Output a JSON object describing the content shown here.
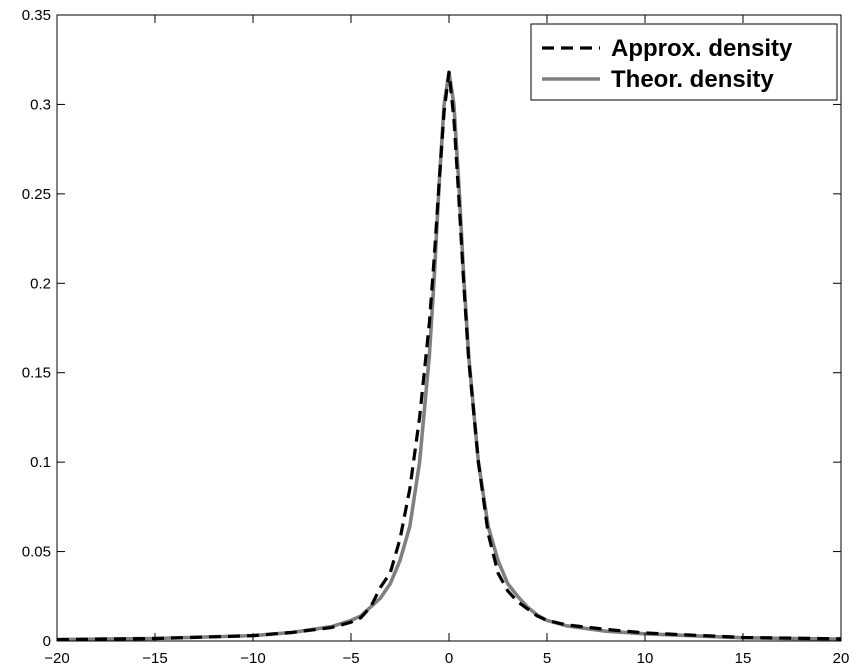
{
  "chart_data": {
    "type": "line",
    "xlim": [
      -20,
      20
    ],
    "ylim": [
      0,
      0.35
    ],
    "xticks": [
      "−20",
      "−15",
      "−10",
      "−5",
      "0",
      "5",
      "10",
      "15",
      "20"
    ],
    "xtick_values": [
      -20,
      -15,
      -10,
      -5,
      0,
      5,
      10,
      15,
      20
    ],
    "yticks": [
      "0",
      "0.05",
      "0.1",
      "0.15",
      "0.2",
      "0.25",
      "0.3",
      "0.35"
    ],
    "ytick_values": [
      0,
      0.05,
      0.1,
      0.15,
      0.2,
      0.25,
      0.3,
      0.35
    ],
    "grid": false,
    "legend_position": "top-right",
    "series": [
      {
        "name": "Approx. density",
        "style": "dashed",
        "color": "#000000",
        "x": [
          -20,
          -15,
          -10,
          -8,
          -6,
          -5,
          -4.5,
          -4,
          -3.5,
          -3,
          -2.5,
          -2,
          -1.5,
          -1,
          -0.75,
          -0.5,
          -0.25,
          0,
          0.25,
          0.5,
          0.75,
          1,
          1.5,
          2,
          2.5,
          3,
          3.5,
          4,
          4.5,
          5,
          6,
          8,
          10,
          15,
          20
        ],
        "y": [
          0.0008,
          0.0014,
          0.003,
          0.0048,
          0.0075,
          0.0105,
          0.013,
          0.019,
          0.03,
          0.038,
          0.057,
          0.085,
          0.125,
          0.178,
          0.215,
          0.257,
          0.296,
          0.318,
          0.292,
          0.248,
          0.2,
          0.158,
          0.1,
          0.06,
          0.038,
          0.028,
          0.022,
          0.018,
          0.014,
          0.0115,
          0.009,
          0.0065,
          0.0045,
          0.002,
          0.0012
        ]
      },
      {
        "name": "Theor. density",
        "style": "solid",
        "color": "#808080",
        "x": [
          -20,
          -15,
          -10,
          -8,
          -6,
          -5,
          -4.5,
          -4,
          -3.5,
          -3,
          -2.5,
          -2,
          -1.5,
          -1,
          -0.75,
          -0.5,
          -0.25,
          0,
          0.25,
          0.5,
          0.75,
          1,
          1.5,
          2,
          2.5,
          3,
          3.5,
          4,
          4.5,
          5,
          6,
          8,
          10,
          15,
          20
        ],
        "y": [
          0.0008,
          0.0014,
          0.003,
          0.0048,
          0.008,
          0.0115,
          0.014,
          0.019,
          0.024,
          0.032,
          0.045,
          0.064,
          0.1,
          0.16,
          0.204,
          0.256,
          0.3,
          0.318,
          0.3,
          0.256,
          0.204,
          0.16,
          0.1,
          0.064,
          0.045,
          0.032,
          0.025,
          0.019,
          0.0145,
          0.0115,
          0.0085,
          0.0055,
          0.004,
          0.0018,
          0.001
        ]
      }
    ]
  }
}
